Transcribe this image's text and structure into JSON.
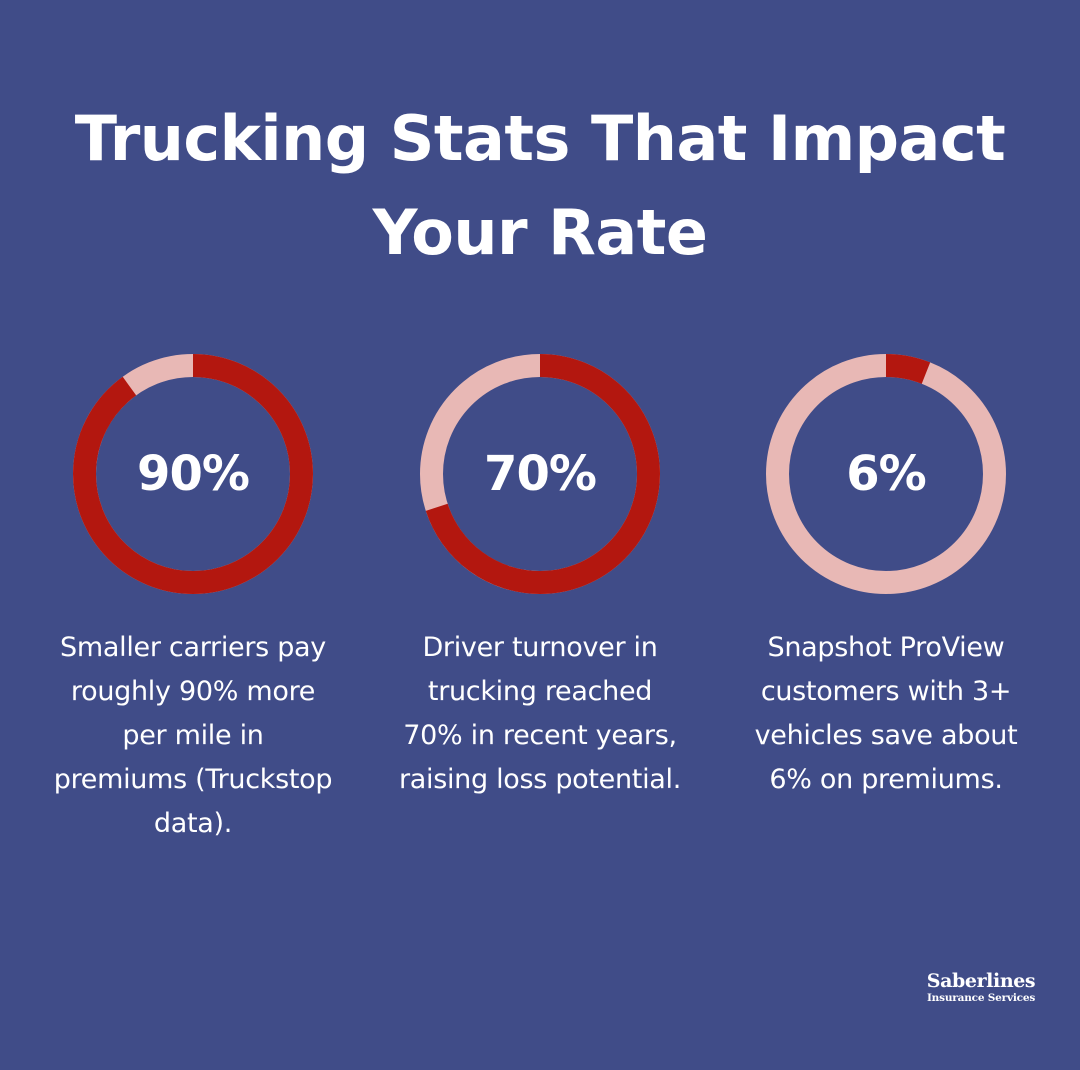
{
  "title": {
    "line1": "Trucking Stats That Impact",
    "line2": "Your Rate"
  },
  "colors": {
    "background": "#404c88",
    "filled": "#b3170f",
    "track": "#e8b8b5",
    "text": "#ffffff"
  },
  "stats": [
    {
      "value_label": "90%",
      "fraction": 0.9,
      "caption": [
        "Smaller carriers pay",
        "roughly 90% more",
        "per mile in",
        "premiums (Truckstop",
        "data)."
      ]
    },
    {
      "value_label": "70%",
      "fraction": 0.7,
      "caption": [
        "Driver turnover in",
        "trucking reached",
        "70% in recent years,",
        "raising loss potential."
      ]
    },
    {
      "value_label": "6%",
      "fraction": 0.06,
      "caption": [
        "Snapshot ProView",
        "customers with 3+",
        "vehicles save about",
        "6% on premiums."
      ]
    }
  ],
  "brand": {
    "name": "Saberlines",
    "subtitle": "Insurance Services"
  }
}
